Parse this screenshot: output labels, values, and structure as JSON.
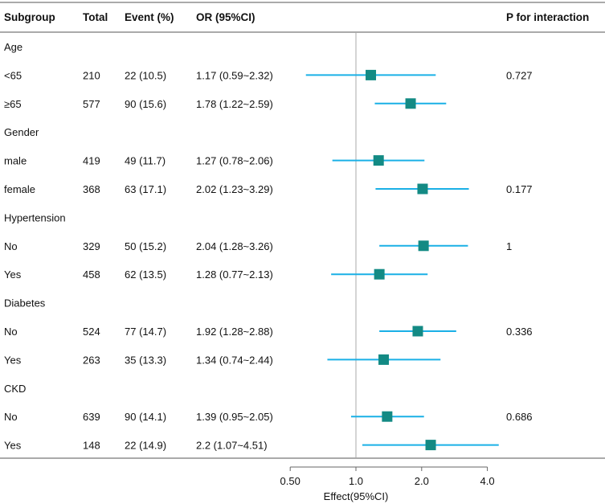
{
  "chart_data": {
    "type": "forest",
    "columns": {
      "subgroup": "Subgroup",
      "total": "Total",
      "event": "Event (%)",
      "or": "OR (95%CI)",
      "p": "P for interaction"
    },
    "rows": [
      {
        "kind": "group",
        "label": "Age"
      },
      {
        "kind": "data",
        "label": "<65",
        "total": "210",
        "event": "22 (10.5)",
        "or_text": "1.17 (0.59~2.32)",
        "or": 1.17,
        "lo": 0.59,
        "hi": 2.32,
        "p": "0.727"
      },
      {
        "kind": "data",
        "label": "≥65",
        "total": "577",
        "event": "90 (15.6)",
        "or_text": "1.78 (1.22~2.59)",
        "or": 1.78,
        "lo": 1.22,
        "hi": 2.59,
        "p": ""
      },
      {
        "kind": "group",
        "label": "Gender"
      },
      {
        "kind": "data",
        "label": "male",
        "total": "419",
        "event": "49 (11.7)",
        "or_text": "1.27 (0.78~2.06)",
        "or": 1.27,
        "lo": 0.78,
        "hi": 2.06,
        "p": ""
      },
      {
        "kind": "data",
        "label": "female",
        "total": "368",
        "event": "63 (17.1)",
        "or_text": "2.02 (1.23~3.29)",
        "or": 2.02,
        "lo": 1.23,
        "hi": 3.29,
        "p": "0.177"
      },
      {
        "kind": "group",
        "label": "Hypertension"
      },
      {
        "kind": "data",
        "label": "No",
        "total": "329",
        "event": "50 (15.2)",
        "or_text": "2.04 (1.28~3.26)",
        "or": 2.04,
        "lo": 1.28,
        "hi": 3.26,
        "p": "1"
      },
      {
        "kind": "data",
        "label": "Yes",
        "total": "458",
        "event": "62 (13.5)",
        "or_text": "1.28 (0.77~2.13)",
        "or": 1.28,
        "lo": 0.77,
        "hi": 2.13,
        "p": ""
      },
      {
        "kind": "group",
        "label": "Diabetes"
      },
      {
        "kind": "data",
        "label": "No",
        "total": "524",
        "event": "77 (14.7)",
        "or_text": "1.92 (1.28~2.88)",
        "or": 1.92,
        "lo": 1.28,
        "hi": 2.88,
        "p": "0.336"
      },
      {
        "kind": "data",
        "label": "Yes",
        "total": "263",
        "event": "35 (13.3)",
        "or_text": "1.34 (0.74~2.44)",
        "or": 1.34,
        "lo": 0.74,
        "hi": 2.44,
        "p": ""
      },
      {
        "kind": "group",
        "label": "CKD"
      },
      {
        "kind": "data",
        "label": "No",
        "total": "639",
        "event": "90 (14.1)",
        "or_text": "1.39 (0.95~2.05)",
        "or": 1.39,
        "lo": 0.95,
        "hi": 2.05,
        "p": "0.686"
      },
      {
        "kind": "data",
        "label": "Yes",
        "total": "148",
        "event": "22 (14.9)",
        "or_text": "2.2 (1.07~4.51)",
        "or": 2.2,
        "lo": 1.07,
        "hi": 4.51,
        "p": ""
      }
    ],
    "x_scale": "log",
    "xlim": [
      0.5,
      4.0
    ],
    "reference_line": 1.0,
    "xticks": [
      0.5,
      1.0,
      2.0,
      4.0
    ],
    "xtick_labels": [
      "0.50",
      "1.0",
      "2.0",
      "4.0"
    ],
    "xlabel": "Effect(95%CI)",
    "colors": {
      "ci": "#1ab0e6",
      "marker": "#138a84",
      "text": "#111111",
      "axis": "#666666",
      "reference": "#a8a8a8"
    }
  }
}
